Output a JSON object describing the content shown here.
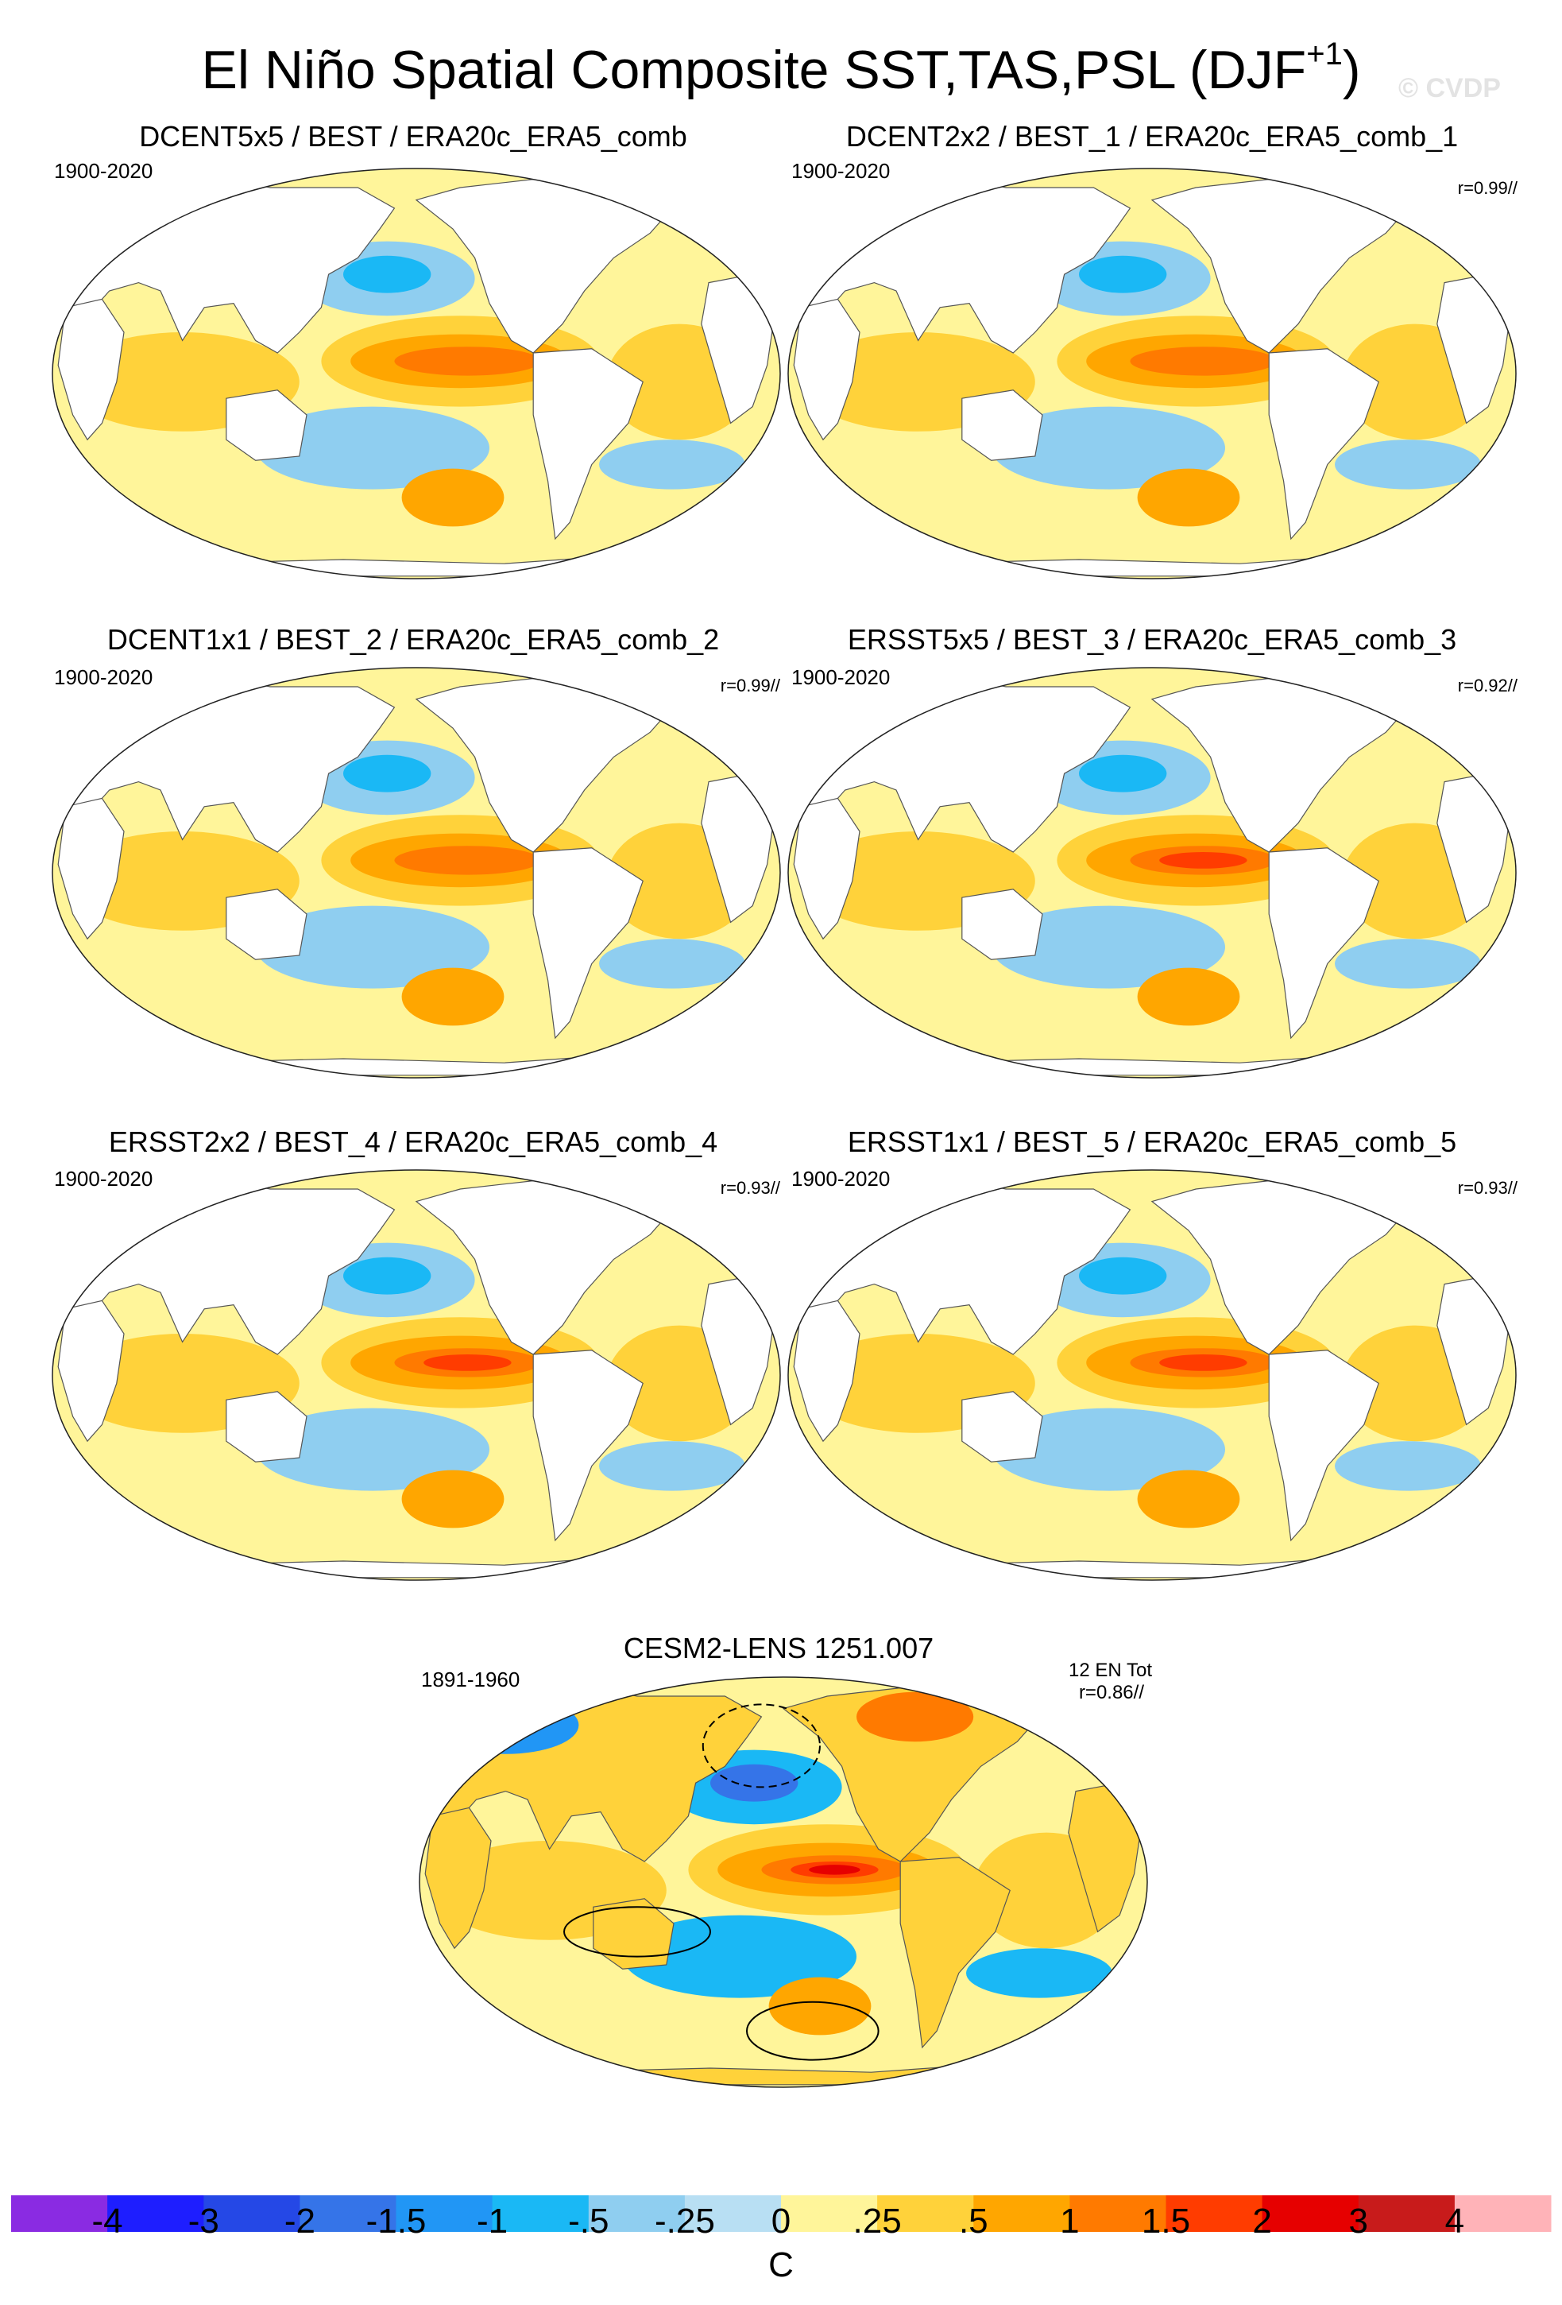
{
  "figure": {
    "title_main": "El Niño Spatial Composite SST,TAS,PSL (DJF",
    "title_sup": "+1",
    "title_end": ")",
    "watermark": "© CVDP"
  },
  "chart_data": {
    "type": "heatmap",
    "colorbar": {
      "units": "C",
      "tick_labels": [
        "-4",
        "-3",
        "-2",
        "-1.5",
        "-1",
        "-.5",
        "-.25",
        "0",
        ".25",
        ".5",
        "1",
        "1.5",
        "2",
        "3",
        "4"
      ],
      "colors": [
        "#8a2be2",
        "#1e1eff",
        "#2548e6",
        "#3574e8",
        "#2196f5",
        "#1ab8f5",
        "#8fcef0",
        "#b8dff3",
        "#fff59a",
        "#ffd23a",
        "#ffa600",
        "#ff7a00",
        "#ff3c00",
        "#e60000",
        "#c81b1b",
        "#ffb3b8"
      ]
    },
    "panels": [
      {
        "title": "DCENT5x5 / BEST / ERA20c_ERA5_comb",
        "period": "1900-2020",
        "r": "",
        "style": "coarse"
      },
      {
        "title": "DCENT2x2 / BEST_1 / ERA20c_ERA5_comb_1",
        "period": "1900-2020",
        "r": "r=0.99//",
        "style": "coarse"
      },
      {
        "title": "DCENT1x1 / BEST_2 / ERA20c_ERA5_comb_2",
        "period": "1900-2020",
        "r": "r=0.99//",
        "style": "coarse"
      },
      {
        "title": "ERSST5x5 / BEST_3 / ERA20c_ERA5_comb_3",
        "period": "1900-2020",
        "r": "r=0.92//",
        "style": "ersst"
      },
      {
        "title": "ERSST2x2 / BEST_4 / ERA20c_ERA5_comb_4",
        "period": "1900-2020",
        "r": "r=0.93//",
        "style": "ersst"
      },
      {
        "title": "ERSST1x1 / BEST_5 / ERA20c_ERA5_comb_5",
        "period": "1900-2020",
        "r": "r=0.93//",
        "style": "ersst"
      },
      {
        "title": "CESM2-LENS 1251.007",
        "period": "1891-1960",
        "r": "r=0.86//",
        "ensemble": "12 EN Tot",
        "style": "model"
      }
    ]
  }
}
